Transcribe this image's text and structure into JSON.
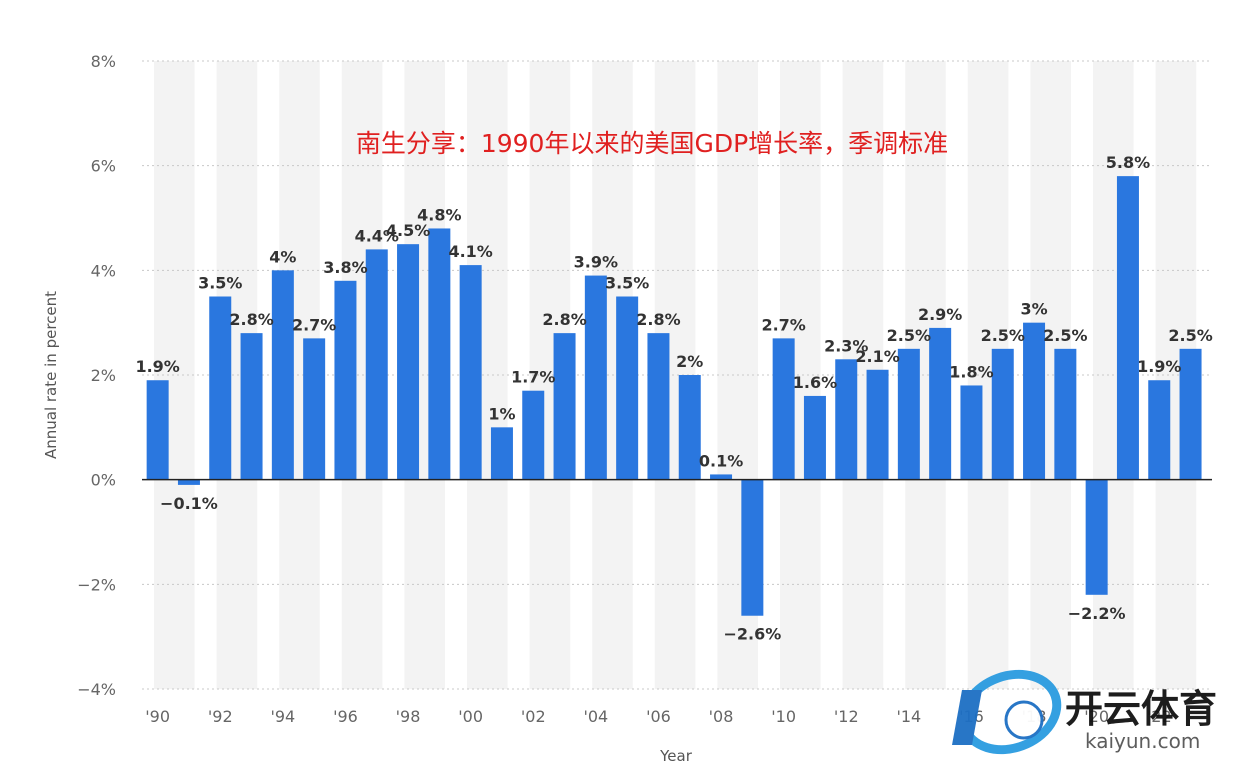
{
  "chart_data": {
    "type": "bar",
    "title": "南生分享：1990年以来的美国GDP增长率，季调标准",
    "xlabel": "Year",
    "ylabel": "Annual rate in percent",
    "ylim": [
      -4,
      8
    ],
    "yticks": [
      8,
      6,
      4,
      2,
      0,
      -2,
      -4
    ],
    "ytick_labels": [
      "8%",
      "6%",
      "4%",
      "2%",
      "0%",
      "−2%",
      "−4%"
    ],
    "categories": [
      "1990",
      "1991",
      "1992",
      "1993",
      "1994",
      "1995",
      "1996",
      "1997",
      "1998",
      "1999",
      "2000",
      "2001",
      "2002",
      "2003",
      "2004",
      "2005",
      "2006",
      "2007",
      "2008",
      "2009",
      "2010",
      "2011",
      "2012",
      "2013",
      "2014",
      "2015",
      "2016",
      "2017",
      "2018",
      "2019",
      "2020",
      "2021",
      "2022",
      "2023"
    ],
    "xtick_labels": [
      "'90",
      "'92",
      "'94",
      "'96",
      "'98",
      "'00",
      "'02",
      "'04",
      "'06",
      "'08",
      "'10",
      "'12",
      "'14",
      "'16",
      "'18",
      "'20",
      "'22"
    ],
    "values": [
      1.9,
      -0.1,
      3.5,
      2.8,
      4.0,
      2.7,
      3.8,
      4.4,
      4.5,
      4.8,
      4.1,
      1.0,
      1.7,
      2.8,
      3.9,
      3.5,
      2.8,
      2.0,
      0.1,
      -2.6,
      2.7,
      1.6,
      2.3,
      2.1,
      2.5,
      2.9,
      1.8,
      2.5,
      3.0,
      2.5,
      -2.2,
      5.8,
      1.9,
      2.5
    ],
    "value_labels": [
      "1.9%",
      "−0.1%",
      "3.5%",
      "2.8%",
      "4%",
      "2.7%",
      "3.8%",
      "4.4%",
      "4.5%",
      "4.8%",
      "4.1%",
      "1%",
      "1.7%",
      "2.8%",
      "3.9%",
      "3.5%",
      "2.8%",
      "2%",
      "0.1%",
      "−2.6%",
      "2.7%",
      "1.6%",
      "2.3%",
      "2.1%",
      "2.5%",
      "2.9%",
      "1.8%",
      "2.5%",
      "3%",
      "2.5%",
      "−2.2%",
      "5.8%",
      "1.9%",
      "2.5%"
    ],
    "grid": true,
    "colors": {
      "bar": "#2a77df",
      "band": "#f3f3f3",
      "grid": "#c8c8c8",
      "title": "#e02020"
    }
  },
  "watermark": {
    "brand": "开云体育",
    "sub": "kaiyun.com"
  }
}
